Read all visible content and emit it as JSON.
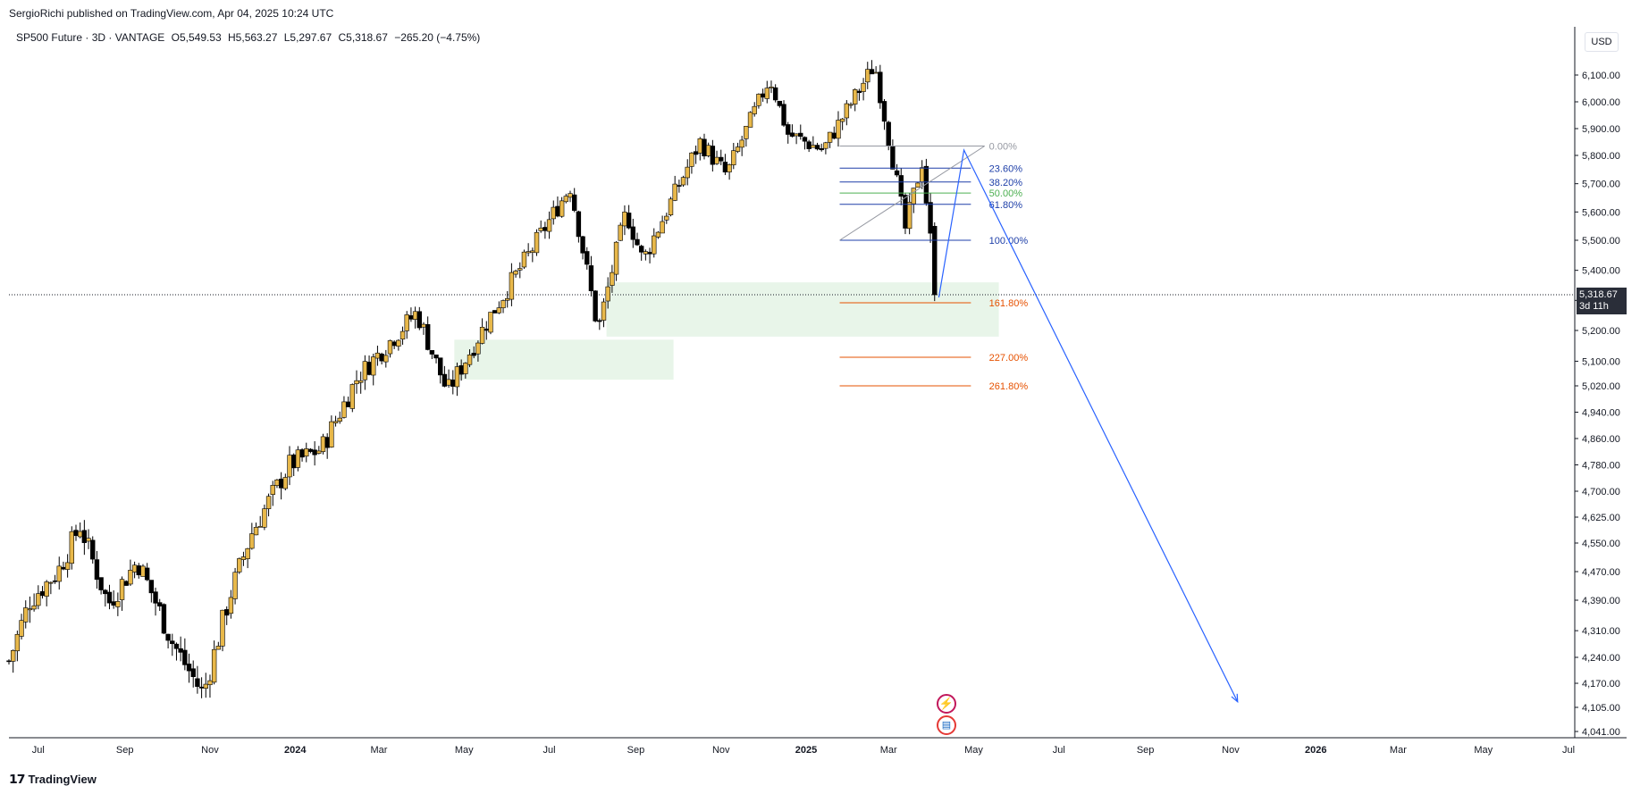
{
  "header": {
    "published": "SergioRichi published on TradingView.com, Apr 04, 2025 10:24 UTC",
    "symbol": "SP500 Future · 3D · VANTAGE",
    "open": "O5,549.53",
    "high": "H5,563.27",
    "low": "L5,297.67",
    "close": "C5,318.67",
    "change": "−265.20 (−4.75%)"
  },
  "currency": "USD",
  "last_price": {
    "value": "5,318.67",
    "countdown": "3d 11h"
  },
  "footer": {
    "brand": "TradingView",
    "logo_icon": "tradingview-logo-icon"
  },
  "events": [
    {
      "name": "lightning-event-icon",
      "glyph": "⚡"
    },
    {
      "name": "us-flag-event-icon",
      "glyph": "▤"
    }
  ],
  "colors": {
    "bull": "#e8b84a",
    "bear": "#000000",
    "fib_gray": "#9598a1",
    "fib_blue": "#1e3fa8",
    "fib_green": "#4caf50",
    "fib_orange": "#e65100",
    "zone": "#e8f5e9",
    "projection": "#2962ff"
  },
  "chart_data": {
    "type": "candlestick",
    "title": "SP500 Future · 3D · VANTAGE",
    "y_ticks": [
      4041,
      4105,
      4170,
      4240,
      4310,
      4390,
      4470,
      4550,
      4625,
      4700,
      4780,
      4860,
      4940,
      5020,
      5100,
      5200,
      5300,
      5400,
      5500,
      5600,
      5700,
      5800,
      5900,
      6000,
      6100
    ],
    "x_ticks": [
      "Jul",
      "Sep",
      "Nov",
      "2024",
      "Mar",
      "May",
      "Jul",
      "Sep",
      "Nov",
      "2025",
      "Mar",
      "May",
      "Jul",
      "Sep",
      "Nov",
      "2026",
      "Mar",
      "May",
      "Jul"
    ],
    "x_ticks_bold": [
      "2024",
      "2025",
      "2026"
    ],
    "price_path": [
      [
        "2023-06-10",
        4230
      ],
      [
        "2023-06-25",
        4390
      ],
      [
        "2023-07-15",
        4470
      ],
      [
        "2023-07-31",
        4600
      ],
      [
        "2023-08-20",
        4380
      ],
      [
        "2023-09-10",
        4500
      ],
      [
        "2023-10-05",
        4280
      ],
      [
        "2023-10-27",
        4140
      ],
      [
        "2023-11-15",
        4400
      ],
      [
        "2023-12-01",
        4580
      ],
      [
        "2023-12-28",
        4780
      ],
      [
        "2024-01-20",
        4830
      ],
      [
        "2024-02-15",
        5050
      ],
      [
        "2024-03-28",
        5260
      ],
      [
        "2024-04-19",
        5000
      ],
      [
        "2024-05-20",
        5250
      ],
      [
        "2024-06-20",
        5480
      ],
      [
        "2024-07-16",
        5690
      ],
      [
        "2024-08-05",
        5200
      ],
      [
        "2024-08-25",
        5600
      ],
      [
        "2024-09-06",
        5430
      ],
      [
        "2024-10-17",
        5850
      ],
      [
        "2024-11-05",
        5730
      ],
      [
        "2024-12-06",
        6090
      ],
      [
        "2024-12-19",
        5880
      ],
      [
        "2025-01-13",
        5820
      ],
      [
        "2025-02-19",
        6140
      ],
      [
        "2025-03-13",
        5540
      ],
      [
        "2025-03-25",
        5780
      ],
      [
        "2025-04-04",
        5318.67
      ]
    ],
    "series": [
      {
        "name": "SP500 Future",
        "last": 5318.67,
        "open": 5549.53,
        "high": 5563.27,
        "low": 5297.67,
        "close": 5318.67
      }
    ],
    "fibonacci": {
      "start_date": "2025-01-25",
      "end_date": "2025-04-29",
      "labels_date": "2025-05-12",
      "levels": [
        {
          "label": "0.00%",
          "price": 5835,
          "color": "#9598a1"
        },
        {
          "label": "23.60%",
          "price": 5755,
          "color": "#1e3fa8"
        },
        {
          "label": "38.20%",
          "price": 5706,
          "color": "#1e3fa8"
        },
        {
          "label": "50.00%",
          "price": 5667,
          "color": "#4caf50"
        },
        {
          "label": "61.80%",
          "price": 5627,
          "color": "#1e3fa8"
        },
        {
          "label": "100.00%",
          "price": 5500,
          "color": "#1e3fa8"
        },
        {
          "label": "161.80%",
          "price": 5292,
          "color": "#e65100"
        },
        {
          "label": "227.00%",
          "price": 5113,
          "color": "#e65100"
        },
        {
          "label": "261.80%",
          "price": 5020,
          "color": "#e65100"
        }
      ]
    },
    "zones": [
      {
        "from": "2024-08-11",
        "to": "2025-05-19",
        "low": 5180,
        "high": 5360
      },
      {
        "from": "2024-04-24",
        "to": "2024-09-28",
        "low": 5040,
        "high": 5170
      }
    ],
    "projection": [
      [
        "2025-04-06",
        5310
      ],
      [
        "2025-04-24",
        5820
      ],
      [
        "2025-11-06",
        4120
      ]
    ],
    "last_price_line": 5318.67
  }
}
